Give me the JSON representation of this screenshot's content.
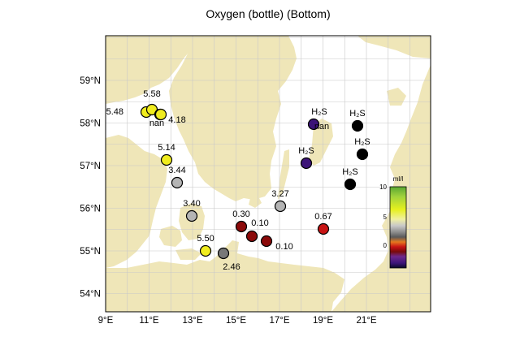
{
  "title": "Oxygen (bottle) (Bottom)",
  "x_ticks": [
    "9°E",
    "11°E",
    "13°E",
    "15°E",
    "17°E",
    "19°E",
    "21°E"
  ],
  "y_ticks": [
    "59°N",
    "58°N",
    "57°N",
    "56°N",
    "55°N",
    "54°N"
  ],
  "colorbar": {
    "unit": "ml/l",
    "ticks": [
      "10",
      "5",
      "0"
    ]
  },
  "colors": {
    "land": "#efe6b8",
    "sea": "#ffffff",
    "grid": "#c8c8c8",
    "yellow": "#f0ec1e",
    "grey": "#b4b4b4",
    "darkgrey": "#787878",
    "darkred": "#8b0a0a",
    "red": "#c81414",
    "purple": "#3c1478",
    "black": "#000000"
  },
  "stations": [
    {
      "label": "5.48",
      "value": 5.48,
      "color": "yellow"
    },
    {
      "label": "5.58",
      "value": 5.58,
      "color": "yellow"
    },
    {
      "label": "nan",
      "value": null,
      "color": "yellow"
    },
    {
      "label": "4.18",
      "value": 4.18,
      "color": "yellow"
    },
    {
      "label": "5.14",
      "value": 5.14,
      "color": "yellow"
    },
    {
      "label": "3.44",
      "value": 3.44,
      "color": "grey"
    },
    {
      "label": "3.40",
      "value": 3.4,
      "color": "grey"
    },
    {
      "label": "5.50",
      "value": 5.5,
      "color": "yellow"
    },
    {
      "label": "2.46",
      "value": 2.46,
      "color": "darkgrey"
    },
    {
      "label": "0.30",
      "value": 0.3,
      "color": "darkred"
    },
    {
      "label": "0.10",
      "value": 0.1,
      "color": "darkred"
    },
    {
      "label": "0.10",
      "value": 0.1,
      "color": "darkred"
    },
    {
      "label": "3.27",
      "value": 3.27,
      "color": "grey"
    },
    {
      "label": "0.67",
      "value": 0.67,
      "color": "red"
    },
    {
      "label": "H₂S",
      "value": null,
      "color": "purple",
      "extra": "nan"
    },
    {
      "label": "H₂S",
      "value": null,
      "color": "black"
    },
    {
      "label": "H₂S",
      "value": null,
      "color": "black"
    },
    {
      "label": "H₂S",
      "value": null,
      "color": "purple"
    },
    {
      "label": "H₂S",
      "value": null,
      "color": "black"
    }
  ]
}
